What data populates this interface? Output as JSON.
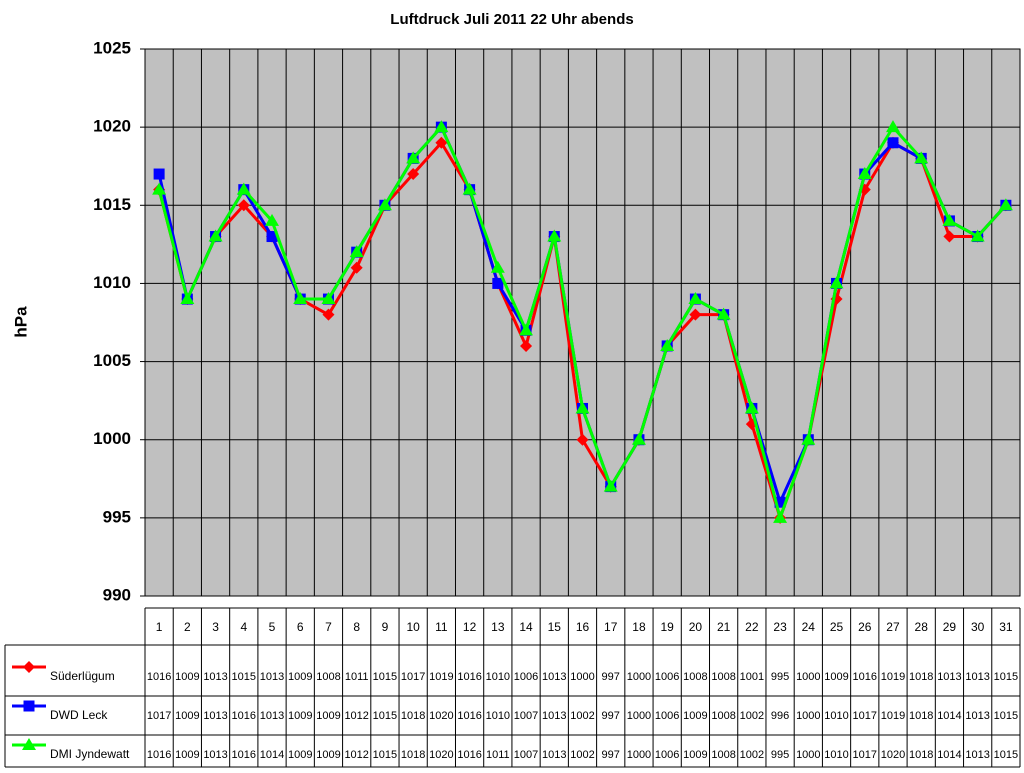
{
  "chart_data": {
    "type": "line",
    "title": "Luftdruck Juli 2011 22 Uhr abends",
    "y_label": "hPa",
    "categories": [
      "1",
      "2",
      "3",
      "4",
      "5",
      "6",
      "7",
      "8",
      "9",
      "10",
      "11",
      "12",
      "13",
      "14",
      "15",
      "16",
      "17",
      "18",
      "19",
      "20",
      "21",
      "22",
      "23",
      "24",
      "25",
      "26",
      "27",
      "28",
      "29",
      "30",
      "31"
    ],
    "series": [
      {
        "name": "Süderlügum",
        "color": "#ff0000",
        "marker": "diamond",
        "values": [
          1016,
          1009,
          1013,
          1015,
          1013,
          1009,
          1008,
          1011,
          1015,
          1017,
          1019,
          1016,
          1010,
          1006,
          1013,
          1000,
          997,
          1000,
          1006,
          1008,
          1008,
          1001,
          995,
          1000,
          1009,
          1016,
          1019,
          1018,
          1013,
          1013,
          1015
        ]
      },
      {
        "name": "DWD Leck",
        "color": "#0000ff",
        "marker": "square",
        "values": [
          1017,
          1009,
          1013,
          1016,
          1013,
          1009,
          1009,
          1012,
          1015,
          1018,
          1020,
          1016,
          1010,
          1007,
          1013,
          1002,
          997,
          1000,
          1006,
          1009,
          1008,
          1002,
          996,
          1000,
          1010,
          1017,
          1019,
          1018,
          1014,
          1013,
          1015
        ]
      },
      {
        "name": "DMI Jyndewatt",
        "color": "#00ff00",
        "marker": "triangle",
        "values": [
          1016,
          1009,
          1013,
          1016,
          1014,
          1009,
          1009,
          1012,
          1015,
          1018,
          1020,
          1016,
          1011,
          1007,
          1013,
          1002,
          997,
          1000,
          1006,
          1009,
          1008,
          1002,
          995,
          1000,
          1010,
          1017,
          1020,
          1018,
          1014,
          1013,
          1015
        ]
      }
    ],
    "ylim": [
      990,
      1025
    ],
    "yticks": [
      990,
      995,
      1000,
      1005,
      1010,
      1015,
      1020,
      1025
    ],
    "grid": true,
    "plot_background": "#c0c0c0"
  }
}
